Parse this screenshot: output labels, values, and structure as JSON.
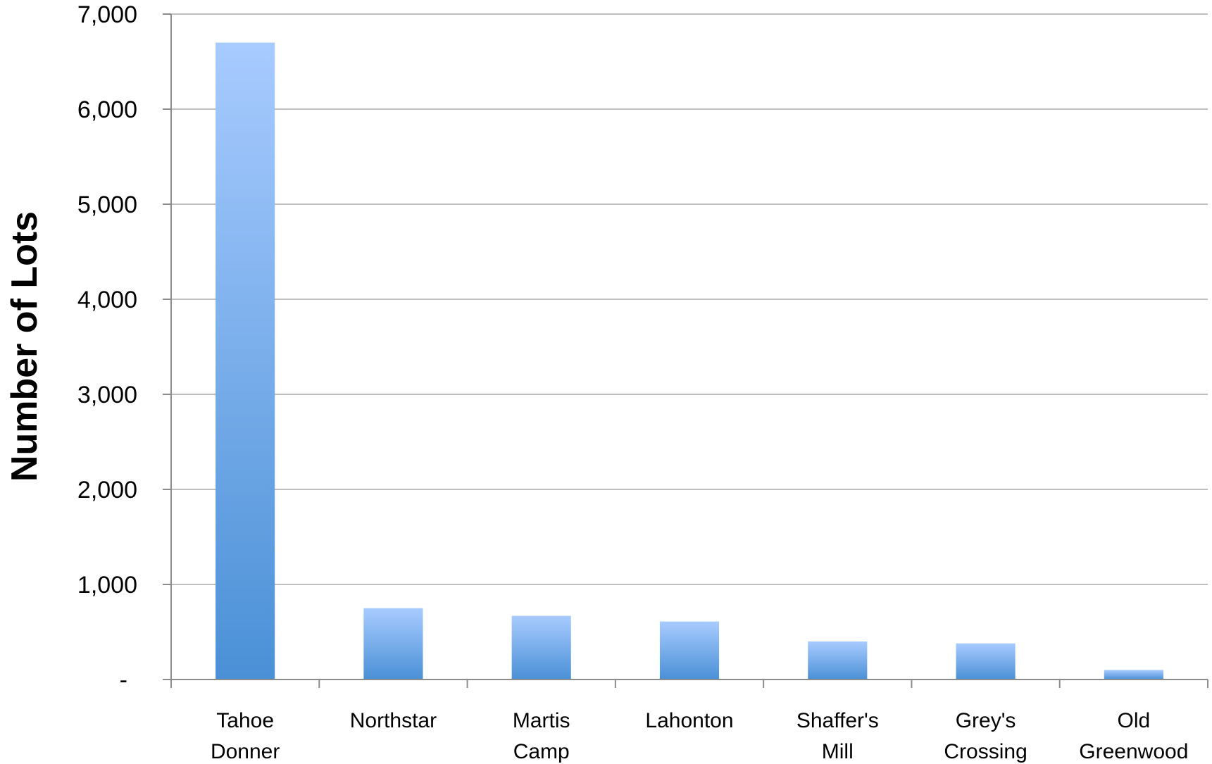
{
  "chart_data": {
    "type": "bar",
    "categories": [
      [
        "Tahoe",
        "Donner"
      ],
      [
        "Northstar"
      ],
      [
        "Martis",
        "Camp"
      ],
      [
        "Lahonton"
      ],
      [
        "Shaffer's",
        "Mill"
      ],
      [
        "Grey's",
        "Crossing"
      ],
      [
        "Old",
        "Greenwood"
      ]
    ],
    "values": [
      6700,
      750,
      670,
      610,
      400,
      380,
      100
    ],
    "ylabel": "Number of Lots",
    "xlabel": "",
    "ylim": [
      0,
      7000
    ],
    "y_ticks": [
      {
        "value": 0,
        "label": "-"
      },
      {
        "value": 1000,
        "label": "1,000"
      },
      {
        "value": 2000,
        "label": "2,000"
      },
      {
        "value": 3000,
        "label": "3,000"
      },
      {
        "value": 4000,
        "label": "4,000"
      },
      {
        "value": 5000,
        "label": "5,000"
      },
      {
        "value": 6000,
        "label": "6,000"
      },
      {
        "value": 7000,
        "label": "7,000"
      }
    ],
    "grid": true,
    "legend": "none",
    "colors": {
      "bar_top": "#a8cbff",
      "bar_bottom": "#4a90d6",
      "grid": "#bfbfbf",
      "axis": "#8c8c8c"
    }
  }
}
